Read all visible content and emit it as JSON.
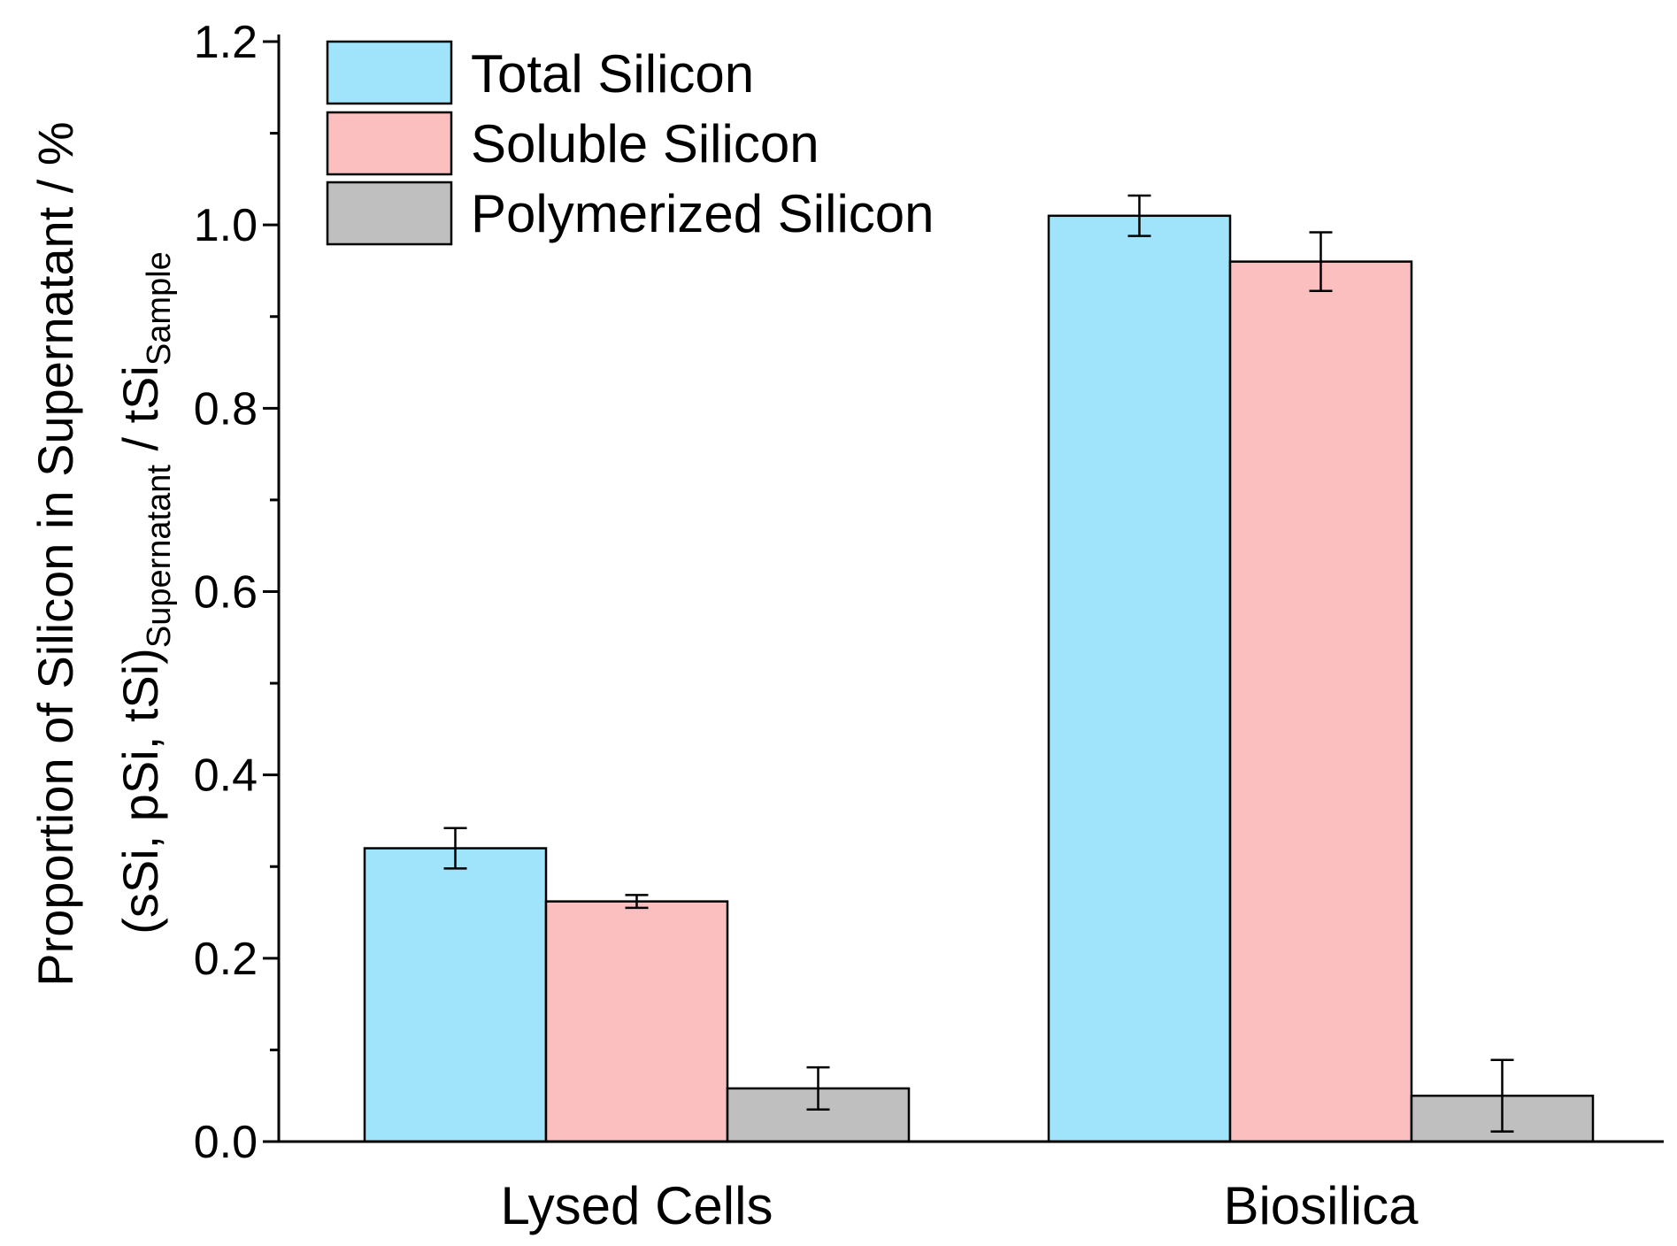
{
  "chart_data": {
    "type": "bar",
    "title": "",
    "xlabel": "",
    "ylabel_line1": "Proportion of Silicon in Supernatant / %",
    "ylabel_line2": {
      "main": "(sSi, pSi, tSi)",
      "sub1": "Supernatant",
      "mid": " / tSi",
      "sub2": "Sample"
    },
    "ylim": [
      0.0,
      1.2
    ],
    "ytick_labels": [
      "0.0",
      "0.2",
      "0.4",
      "0.6",
      "0.8",
      "1.0",
      "1.2"
    ],
    "yticks": [
      0.0,
      0.2,
      0.4,
      0.6,
      0.8,
      1.0,
      1.2
    ],
    "categories": [
      "Lysed Cells",
      "Biosilica"
    ],
    "legend_position": "top-left",
    "series": [
      {
        "name": "Total Silicon",
        "color": "#a0e4fb",
        "values": [
          0.32,
          1.01
        ],
        "errors": [
          0.022,
          0.022
        ]
      },
      {
        "name": "Soluble Silicon",
        "color": "#fcbfc0",
        "values": [
          0.262,
          0.96
        ],
        "errors": [
          0.007,
          0.032
        ]
      },
      {
        "name": "Polymerized Silicon",
        "color": "#bfbfbf",
        "values": [
          0.058,
          0.05
        ],
        "errors": [
          0.023,
          0.039
        ]
      }
    ]
  }
}
